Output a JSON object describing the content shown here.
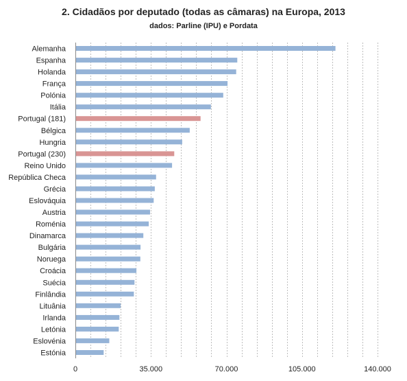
{
  "chart_data": {
    "type": "bar",
    "orientation": "horizontal",
    "title": "2. Cidadãos por deputado (todas as câmaras) na Europa, 2013",
    "subtitle": "dados: Parline (IPU) e Pordata",
    "xlabel": "",
    "ylabel": "",
    "xlim": [
      0,
      140000
    ],
    "grid": true,
    "legend": "none",
    "ticks": [
      "0",
      "35.000",
      "70.000",
      "105.000",
      "140.000"
    ],
    "tick_values": [
      0,
      35000,
      70000,
      105000,
      140000
    ],
    "minor_grid_step": 7000,
    "colors": {
      "default": "#95b3d7",
      "highlight": "#d99594"
    },
    "highlight": [
      "Portugal (181)",
      "Portugal (230)"
    ],
    "categories": [
      "Alemanha",
      "Espanha",
      "Holanda",
      "França",
      "Polónia",
      "Itália",
      "Portugal (181)",
      "Bélgica",
      "Hungria",
      "Portugal (230)",
      "Reino Unido",
      "República Checa",
      "Grécia",
      "Eslováquia",
      "Austria",
      "Roménia",
      "Dinamarca",
      "Bulgária",
      "Noruega",
      "Croácia",
      "Suécia",
      "Finlândia",
      "Lituânia",
      "Irlanda",
      "Letónia",
      "Eslovénia",
      "Estónia"
    ],
    "values": [
      120500,
      75000,
      74500,
      70500,
      68500,
      62800,
      58000,
      53000,
      49500,
      45800,
      44800,
      37400,
      36800,
      36300,
      34600,
      34000,
      31500,
      30200,
      30100,
      28300,
      27400,
      27100,
      21000,
      20400,
      20100,
      15700,
      13100
    ]
  }
}
